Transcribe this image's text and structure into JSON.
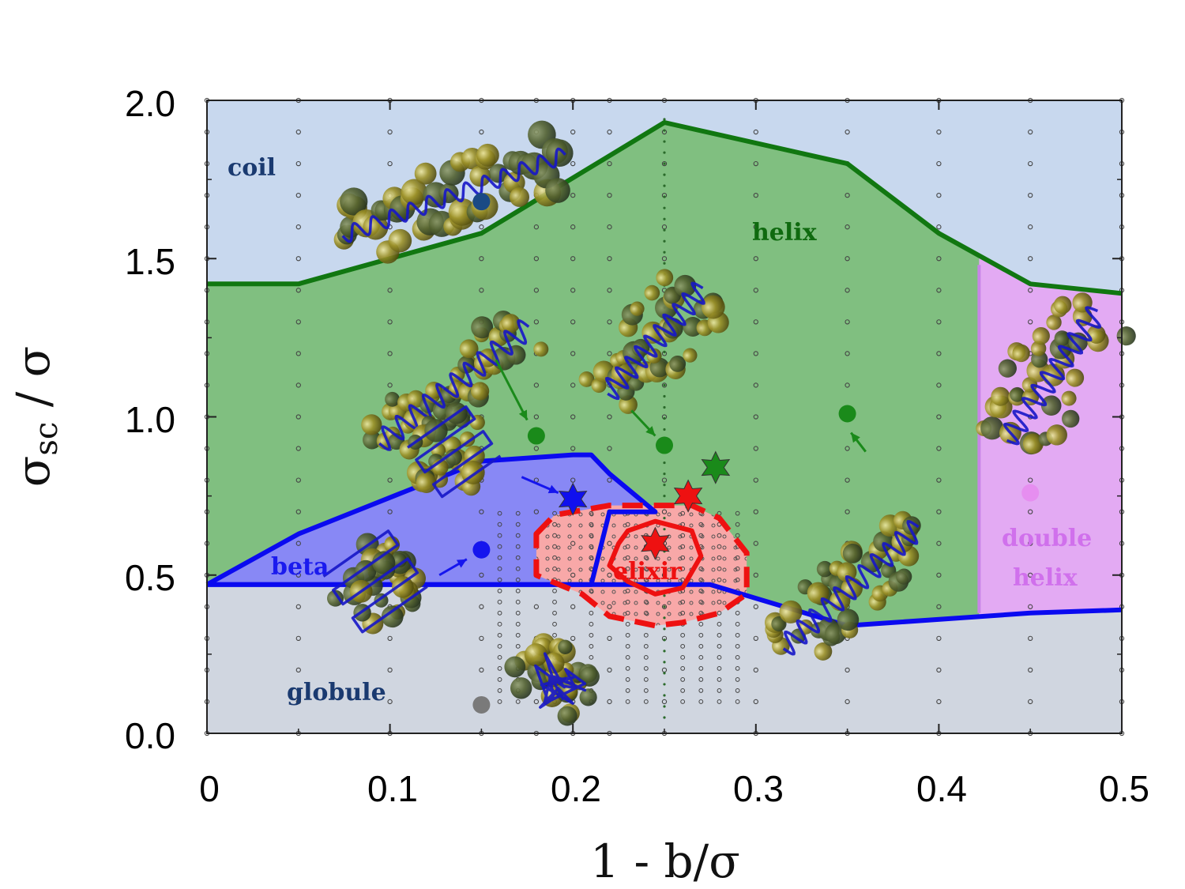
{
  "chart_data": {
    "type": "phase-diagram",
    "xlabel": "1 - b/σ",
    "ylabel_main": "σ",
    "ylabel_sub": "sc",
    "ylabel_tail": " / σ",
    "xlim": [
      0,
      0.5
    ],
    "ylim": [
      0,
      2.0
    ],
    "x_ticks": [
      0,
      0.1,
      0.2,
      0.3,
      0.4,
      0.5
    ],
    "x_tick_labels": [
      "0",
      "0.1",
      "0.2",
      "0.3",
      "0.4",
      "0.5"
    ],
    "y_ticks": [
      0,
      0.5,
      1.0,
      1.5,
      2.0
    ],
    "y_tick_labels": [
      "0.0",
      "0.5",
      "1.0",
      "1.5",
      "2.0"
    ],
    "colors": {
      "coil": "#c8d8ee",
      "helix": "#80bf80",
      "beta": "#8888f5",
      "globule": "#d0d6e0",
      "double_helix": "#e3aaf3",
      "elixir": "#f8a8a8",
      "helix_line": "#117711",
      "beta_line": "#0a0af0",
      "elixir_line": "#ee1111"
    },
    "regions": [
      {
        "name": "coil",
        "label": "coil",
        "label_color": "#1a3a70"
      },
      {
        "name": "helix",
        "label": "helix",
        "label_color": "#0f6a0f"
      },
      {
        "name": "beta",
        "label": "beta",
        "label_color": "#1a1aee"
      },
      {
        "name": "elixir",
        "label": "elixir",
        "label_color": "#ee1111"
      },
      {
        "name": "globule",
        "label": "globule",
        "label_color": "#1a3a70"
      },
      {
        "name": "double_helix",
        "label_line1": "double",
        "label_line2": "helix",
        "label_color": "#d070ec"
      }
    ],
    "boundaries": {
      "helix_upper": [
        [
          0,
          1.42
        ],
        [
          0.05,
          1.42
        ],
        [
          0.15,
          1.58
        ],
        [
          0.25,
          1.93
        ],
        [
          0.35,
          1.8
        ],
        [
          0.4,
          1.58
        ],
        [
          0.45,
          1.42
        ],
        [
          0.5,
          1.39
        ]
      ],
      "double_helix_left": [
        [
          0.422,
          1.48
        ],
        [
          0.422,
          0.38
        ]
      ],
      "lower": [
        [
          0,
          0.47
        ],
        [
          0.21,
          0.47
        ],
        [
          0.275,
          0.47
        ],
        [
          0.35,
          0.34
        ],
        [
          0.45,
          0.38
        ],
        [
          0.5,
          0.39
        ]
      ],
      "beta_polygon": [
        [
          0,
          0.47
        ],
        [
          0.05,
          0.63
        ],
        [
          0.15,
          0.86
        ],
        [
          0.2,
          0.88
        ],
        [
          0.21,
          0.88
        ],
        [
          0.22,
          0.82
        ],
        [
          0.245,
          0.7
        ],
        [
          0.22,
          0.7
        ],
        [
          0.21,
          0.47
        ],
        [
          0,
          0.47
        ]
      ],
      "elixir_outer": [
        [
          0.18,
          0.63
        ],
        [
          0.19,
          0.69
        ],
        [
          0.22,
          0.72
        ],
        [
          0.25,
          0.72
        ],
        [
          0.265,
          0.72
        ],
        [
          0.28,
          0.68
        ],
        [
          0.295,
          0.57
        ],
        [
          0.295,
          0.44
        ],
        [
          0.28,
          0.38
        ],
        [
          0.26,
          0.35
        ],
        [
          0.245,
          0.34
        ],
        [
          0.22,
          0.37
        ],
        [
          0.205,
          0.44
        ],
        [
          0.18,
          0.5
        ],
        [
          0.18,
          0.63
        ]
      ],
      "elixir_inner": [
        [
          0.23,
          0.64
        ],
        [
          0.245,
          0.67
        ],
        [
          0.265,
          0.64
        ],
        [
          0.27,
          0.56
        ],
        [
          0.26,
          0.46
        ],
        [
          0.245,
          0.44
        ],
        [
          0.23,
          0.48
        ],
        [
          0.22,
          0.53
        ],
        [
          0.225,
          0.6
        ],
        [
          0.23,
          0.64
        ]
      ]
    },
    "grid_columns_main": [
      0,
      0.05,
      0.1,
      0.15,
      0.18,
      0.2,
      0.22,
      0.25,
      0.3,
      0.35,
      0.4,
      0.45,
      0.5
    ],
    "grid_columns_dense": [
      0.16,
      0.17,
      0.19,
      0.21,
      0.23,
      0.24,
      0.26,
      0.27,
      0.28,
      0.29
    ],
    "markers": [
      {
        "kind": "dot",
        "phase": "coil",
        "x": 0.15,
        "y": 1.68,
        "color": "#1a4a85"
      },
      {
        "kind": "dot",
        "phase": "helix",
        "x": 0.18,
        "y": 0.94,
        "color": "#1a8a1a"
      },
      {
        "kind": "dot",
        "phase": "helix",
        "x": 0.25,
        "y": 0.91,
        "color": "#1a8a1a"
      },
      {
        "kind": "dot",
        "phase": "helix",
        "x": 0.35,
        "y": 1.01,
        "color": "#1a8a1a"
      },
      {
        "kind": "dot",
        "phase": "beta",
        "x": 0.15,
        "y": 0.58,
        "color": "#1515ee"
      },
      {
        "kind": "dot",
        "phase": "globule",
        "x": 0.15,
        "y": 0.09,
        "color": "#7a7a7a"
      },
      {
        "kind": "dot",
        "phase": "double_helix",
        "x": 0.45,
        "y": 0.76,
        "color": "#e68ef0"
      },
      {
        "kind": "star",
        "phase": "beta",
        "x": 0.2,
        "y": 0.74,
        "color": "#1010ee"
      },
      {
        "kind": "star",
        "phase": "elixir",
        "x": 0.263,
        "y": 0.75,
        "color": "#ee1111"
      },
      {
        "kind": "star",
        "phase": "elixir",
        "x": 0.245,
        "y": 0.6,
        "color": "#ee1111"
      },
      {
        "kind": "star",
        "phase": "helix",
        "x": 0.278,
        "y": 0.84,
        "color": "#1a8a1a"
      }
    ],
    "arrows": [
      {
        "from": [
          0.158,
          1.18
        ],
        "to": [
          0.175,
          0.99
        ],
        "color": "#1a8a1a"
      },
      {
        "from": [
          0.232,
          1.02
        ],
        "to": [
          0.245,
          0.94
        ],
        "color": "#1a8a1a"
      },
      {
        "from": [
          0.36,
          0.89
        ],
        "to": [
          0.352,
          0.95
        ],
        "color": "#1a8a1a"
      },
      {
        "from": [
          0.172,
          0.81
        ],
        "to": [
          0.192,
          0.76
        ],
        "color": "#1515ee"
      },
      {
        "from": [
          0.127,
          0.5
        ],
        "to": [
          0.142,
          0.55
        ],
        "color": "#1515ee"
      }
    ],
    "structures": [
      {
        "kind": "coil",
        "x": 0.135,
        "y": 1.7,
        "length": 300,
        "width": 80,
        "angle": -20,
        "segments": 12
      },
      {
        "kind": "helix",
        "x": 0.135,
        "y": 1.1,
        "length": 240,
        "width": 72,
        "angle": -38,
        "segments": 11
      },
      {
        "kind": "helix",
        "x": 0.245,
        "y": 1.24,
        "length": 180,
        "width": 90,
        "angle": -48,
        "segments": 10
      },
      {
        "kind": "helix",
        "x": 0.352,
        "y": 0.46,
        "length": 230,
        "width": 80,
        "angle": -42,
        "segments": 11
      },
      {
        "kind": "beta",
        "x": 0.135,
        "y": 0.89,
        "length": 110,
        "width": 100,
        "angle": -35,
        "segments": 8
      },
      {
        "kind": "beta",
        "x": 0.092,
        "y": 0.48,
        "length": 120,
        "width": 110,
        "angle": -35,
        "segments": 8
      },
      {
        "kind": "globule",
        "x": 0.19,
        "y": 0.17,
        "length": 110,
        "width": 100,
        "angle": 0,
        "segments": 9
      },
      {
        "kind": "helix",
        "x": 0.462,
        "y": 1.13,
        "length": 200,
        "width": 110,
        "angle": -55,
        "segments": 10
      }
    ]
  }
}
